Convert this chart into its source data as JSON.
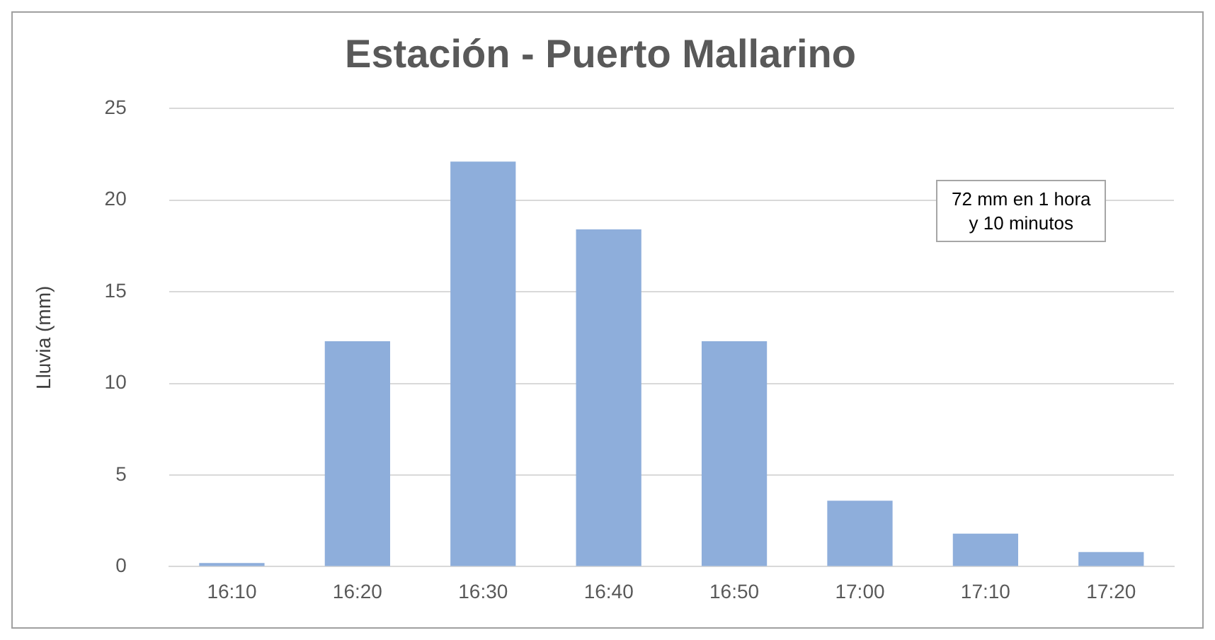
{
  "chart_data": {
    "type": "bar",
    "title": "Estación - Puerto Mallarino",
    "ylabel": "Lluvia (mm)",
    "categories": [
      "16:10",
      "16:20",
      "16:30",
      "16:40",
      "16:50",
      "17:00",
      "17:10",
      "17:20"
    ],
    "values": [
      0.2,
      12.3,
      22.1,
      18.4,
      12.3,
      3.6,
      1.8,
      0.8
    ],
    "color": "#8eaedb",
    "ylim": [
      0,
      25
    ],
    "yticks": [
      0,
      5,
      10,
      15,
      20,
      25
    ],
    "grid": "y",
    "annotations": [
      "72 mm en 1 hora\ny 10 minutos"
    ]
  }
}
